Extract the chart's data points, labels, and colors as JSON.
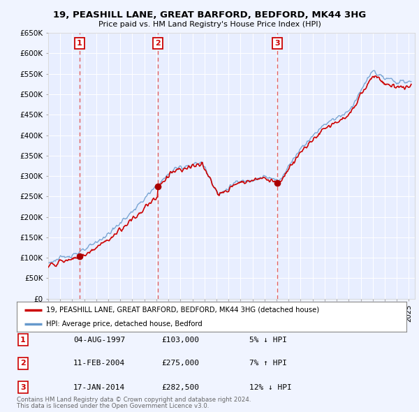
{
  "title": "19, PEASHILL LANE, GREAT BARFORD, BEDFORD, MK44 3HG",
  "subtitle": "Price paid vs. HM Land Registry's House Price Index (HPI)",
  "ylim": [
    0,
    650000
  ],
  "background_color": "#f0f4ff",
  "plot_bg": "#e8eeff",
  "grid_color": "#ffffff",
  "purchases": [
    {
      "date_num": 1997.6,
      "price": 103000,
      "label": "1"
    },
    {
      "date_num": 2004.1,
      "price": 275000,
      "label": "2"
    },
    {
      "date_num": 2014.05,
      "price": 282500,
      "label": "3"
    }
  ],
  "vline_color": "#e06060",
  "purchase_dot_color": "#aa0000",
  "legend_line1_color": "#cc0000",
  "legend_line2_color": "#6699cc",
  "legend_label1": "19, PEASHILL LANE, GREAT BARFORD, BEDFORD, MK44 3HG (detached house)",
  "legend_label2": "HPI: Average price, detached house, Bedford",
  "table_entries": [
    {
      "num": "1",
      "date": "04-AUG-1997",
      "price": "£103,000",
      "hpi": "5% ↓ HPI"
    },
    {
      "num": "2",
      "date": "11-FEB-2004",
      "price": "£275,000",
      "hpi": "7% ↑ HPI"
    },
    {
      "num": "3",
      "date": "17-JAN-2014",
      "price": "£282,500",
      "hpi": "12% ↓ HPI"
    }
  ],
  "footnote1": "Contains HM Land Registry data © Crown copyright and database right 2024.",
  "footnote2": "This data is licensed under the Open Government Licence v3.0.",
  "xstart": 1995.0,
  "xend": 2025.5
}
